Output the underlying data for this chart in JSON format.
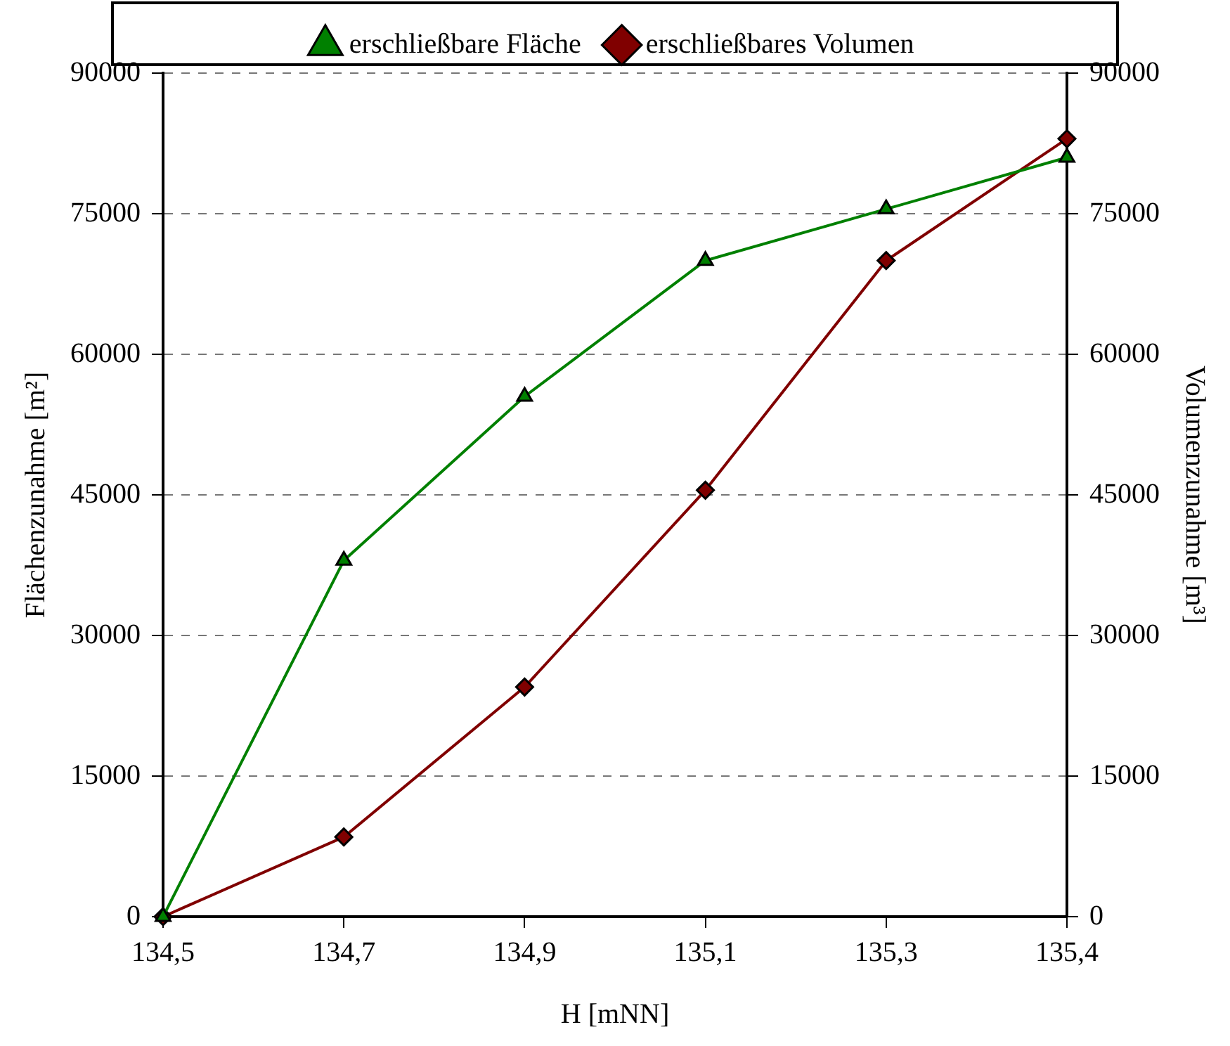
{
  "chart_data": {
    "type": "line",
    "xlabel": "H [mNN]",
    "ylabel": "Flächenzunahme [m²]",
    "y2label": "Volumenzunahme [m³]",
    "categories": [
      "134,5",
      "134,7",
      "134,9",
      "135,1",
      "135,3",
      "135,4"
    ],
    "series": [
      {
        "name": "erschließbare Fläche",
        "color": "#008000",
        "marker": "triangle",
        "values": [
          0,
          38000,
          55500,
          70000,
          75500,
          81000
        ]
      },
      {
        "name": "erschließbares Volumen",
        "color": "#800000",
        "marker": "diamond",
        "axis": "y2",
        "values": [
          0,
          8500,
          24500,
          45500,
          70000,
          83000
        ]
      }
    ],
    "ylim": [
      0,
      90000
    ],
    "yticks": [
      0,
      15000,
      30000,
      45000,
      60000,
      75000,
      90000
    ],
    "y2lim": [
      0,
      90000
    ],
    "y2ticks": [
      0,
      15000,
      30000,
      45000,
      60000,
      75000,
      90000
    ],
    "grid": "y",
    "legend": "top",
    "line_style": "solid"
  }
}
